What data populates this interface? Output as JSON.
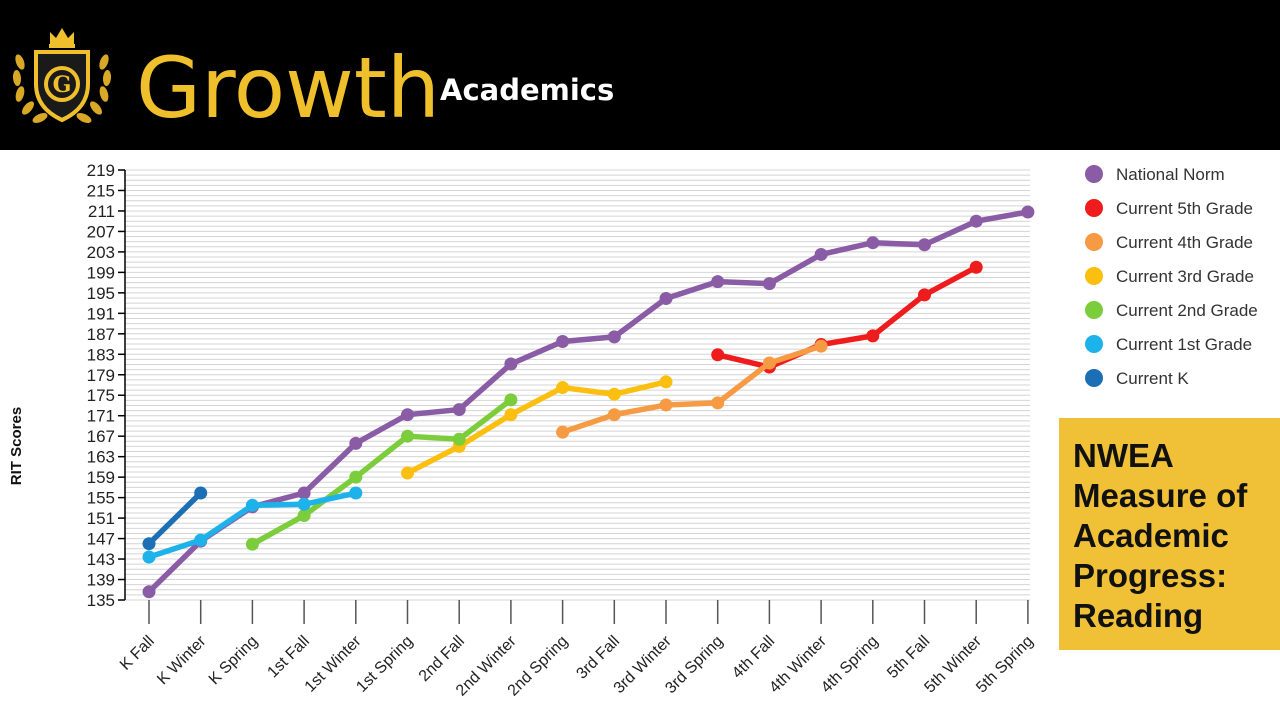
{
  "header": {
    "title": "Growth",
    "subtitle": "Academics",
    "logo_letter": "G",
    "logo_icon": "crown-shield-laurel-icon",
    "gold_color": "#f0c02c"
  },
  "callout": {
    "lines": [
      "NWEA",
      "Measure of",
      "Academic",
      "Progress:",
      "Reading"
    ],
    "background": "#f0c137"
  },
  "chart_data": {
    "type": "line",
    "title": "",
    "xlabel": "",
    "ylabel": "RIT Scores",
    "ylim": [
      135,
      219
    ],
    "y_ticks": [
      135,
      139,
      143,
      147,
      151,
      155,
      159,
      163,
      167,
      171,
      175,
      179,
      183,
      187,
      191,
      195,
      199,
      203,
      207,
      211,
      215,
      219
    ],
    "grid": true,
    "legend_position": "right",
    "categories": [
      "K Fall",
      "K Winter",
      "K Spring",
      "1st Fall",
      "1st Winter",
      "1st Spring",
      "2nd Fall",
      "2nd Winter",
      "2nd Spring",
      "3rd Fall",
      "3rd Winter",
      "3rd Spring",
      "4th Fall",
      "4th Winter",
      "4th Spring",
      "5th Fall",
      "5th Winter",
      "5th Spring"
    ],
    "series": [
      {
        "name": "National Norm",
        "color": "#8a5ca6",
        "values": [
          136.6,
          146.5,
          153.2,
          155.9,
          165.6,
          171.2,
          172.2,
          181.1,
          185.5,
          186.4,
          193.9,
          197.2,
          196.8,
          202.5,
          204.8,
          204.4,
          209.0,
          210.8
        ]
      },
      {
        "name": "Current 5th Grade",
        "color": "#ee1c1c",
        "values": [
          null,
          null,
          null,
          null,
          null,
          null,
          null,
          null,
          null,
          null,
          null,
          182.9,
          180.5,
          184.9,
          186.6,
          194.6,
          200.0,
          null
        ]
      },
      {
        "name": "Current 4th Grade",
        "color": "#f79a44",
        "values": [
          null,
          null,
          null,
          null,
          null,
          null,
          null,
          null,
          167.8,
          171.2,
          173.1,
          173.5,
          181.3,
          184.6,
          null,
          null,
          null,
          null
        ]
      },
      {
        "name": "Current 3rd Grade",
        "color": "#fbbf10",
        "values": [
          null,
          null,
          null,
          null,
          null,
          159.8,
          165.0,
          171.2,
          176.5,
          175.2,
          177.6,
          null,
          null,
          null,
          null,
          null,
          null,
          null
        ]
      },
      {
        "name": "Current 2nd Grade",
        "color": "#7ccd3c",
        "values": [
          null,
          null,
          145.9,
          151.5,
          159.0,
          167.0,
          166.4,
          174.1,
          null,
          null,
          null,
          null,
          null,
          null,
          null,
          null,
          null,
          null
        ]
      },
      {
        "name": "Current 1st Grade",
        "color": "#1eb2ea",
        "values": [
          143.4,
          146.7,
          153.5,
          153.7,
          155.9,
          null,
          null,
          null,
          null,
          null,
          null,
          null,
          null,
          null,
          null,
          null,
          null,
          null
        ]
      },
      {
        "name": "Current K",
        "color": "#1d6fb5",
        "values": [
          146.0,
          155.9,
          null,
          null,
          null,
          null,
          null,
          null,
          null,
          null,
          null,
          null,
          null,
          null,
          null,
          null,
          null,
          null
        ]
      }
    ]
  }
}
